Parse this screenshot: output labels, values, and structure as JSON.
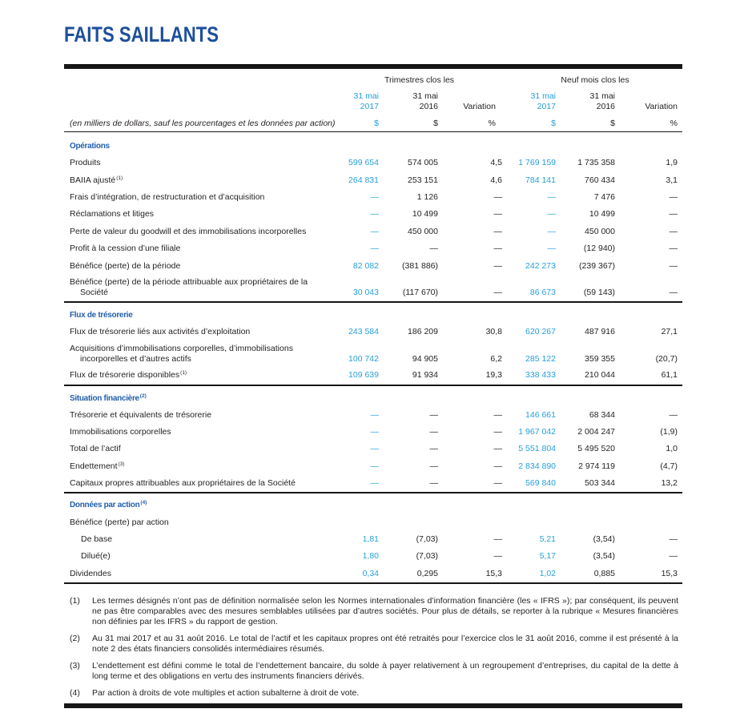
{
  "title": "FAITS SAILLANTS",
  "colors": {
    "title": "#1d4f9c",
    "section_heading": "#235fab",
    "text": "#231f20",
    "rules": "#161616"
  },
  "column_groups": [
    {
      "label": "Trimestres clos les"
    },
    {
      "label": "Neuf mois clos les"
    }
  ],
  "columns": [
    {
      "line1": "31 mai",
      "line2": "2017",
      "unit": "$",
      "color": "#26a0da"
    },
    {
      "line1": "31 mai",
      "line2": "2016",
      "unit": "$",
      "color": "#231f20"
    },
    {
      "line2": "Variation",
      "unit": "%",
      "color": "#231f20"
    },
    {
      "line1": "31 mai",
      "line2": "2017",
      "unit": "$",
      "color": "#26a0da"
    },
    {
      "line1": "31 mai",
      "line2": "2016",
      "unit": "$",
      "color": "#231f20"
    },
    {
      "line2": "Variation",
      "unit": "%",
      "color": "#231f20"
    }
  ],
  "units_note": "(en milliers de dollars, sauf les pourcentages et les données par action)",
  "sections": [
    {
      "title": "Opérations",
      "rows": [
        {
          "label": [
            "Produits"
          ],
          "values": [
            "599 654",
            "574 005",
            "4,5",
            "1 769 159",
            "1 735 358",
            "1,9"
          ]
        },
        {
          "label": [
            "BAIIA ajusté"
          ],
          "sup": "(1)",
          "values": [
            "264 831",
            "253 151",
            "4,6",
            "784 141",
            "760 434",
            "3,1"
          ]
        },
        {
          "label": [
            "Frais d’intégration, de restructuration et d’acquisition"
          ],
          "values": [
            "—",
            "1 126",
            "—",
            "—",
            "7 476",
            "—"
          ]
        },
        {
          "label": [
            "Réclamations et litiges"
          ],
          "values": [
            "—",
            "10 499",
            "—",
            "—",
            "10 499",
            "—"
          ]
        },
        {
          "label": [
            "Perte de valeur du goodwill et des immobilisations incorporelles"
          ],
          "values": [
            "—",
            "450 000",
            "—",
            "—",
            "450 000",
            "—"
          ]
        },
        {
          "label": [
            "Profit à la cession d’une filiale"
          ],
          "values": [
            "—",
            "—",
            "—",
            "—",
            "(12 940)",
            "—"
          ]
        },
        {
          "label": [
            "Bénéfice (perte) de la période"
          ],
          "values": [
            "82 082",
            "(381 886)",
            "—",
            "242 273",
            "(239 367)",
            "—"
          ]
        },
        {
          "label": [
            "Bénéfice (perte) de la période attribuable aux propriétaires de la",
            "Société"
          ],
          "values": [
            "30 043",
            "(117 670)",
            "—",
            "86 673",
            "(59 143)",
            "—"
          ]
        }
      ]
    },
    {
      "title": "Flux de trésorerie",
      "rows": [
        {
          "label": [
            "Flux de trésorerie liés aux activités d’exploitation"
          ],
          "values": [
            "243 584",
            "186 209",
            "30,8",
            "620 267",
            "487 916",
            "27,1"
          ]
        },
        {
          "label": [
            "Acquisitions d’immobilisations corporelles, d’immobilisations",
            "incorporelles et d’autres actifs"
          ],
          "values": [
            "100 742",
            "94 905",
            "6,2",
            "285 122",
            "359 355",
            "(20,7)"
          ]
        },
        {
          "label": [
            "Flux de trésorerie disponibles"
          ],
          "sup": "(1)",
          "values": [
            "109 639",
            "91 934",
            "19,3",
            "338 433",
            "210 044",
            "61,1"
          ]
        }
      ]
    },
    {
      "title": "Situation financière",
      "sup": "(2)",
      "rows": [
        {
          "label": [
            "Trésorerie et équivalents de trésorerie"
          ],
          "values": [
            "—",
            "—",
            "—",
            "146 661",
            "68 344",
            "—"
          ]
        },
        {
          "label": [
            "Immobilisations corporelles"
          ],
          "values": [
            "—",
            "—",
            "—",
            "1 967 042",
            "2 004 247",
            "(1,9)"
          ]
        },
        {
          "label": [
            "Total de l’actif"
          ],
          "values": [
            "—",
            "—",
            "—",
            "5 551 804",
            "5 495 520",
            "1,0"
          ]
        },
        {
          "label": [
            "Endettement"
          ],
          "sup": "(3)",
          "values": [
            "—",
            "—",
            "—",
            "2 834 890",
            "2 974 119",
            "(4,7)"
          ]
        },
        {
          "label": [
            "Capitaux propres attribuables aux propriétaires de la Société"
          ],
          "values": [
            "—",
            "—",
            "—",
            "569 840",
            "503 344",
            "13,2"
          ]
        }
      ]
    },
    {
      "title": "Données par action",
      "sup": "(4)",
      "rows": [
        {
          "label": [
            "Bénéfice (perte) par action"
          ],
          "values": [],
          "children": [
            {
              "label": [
                "De base"
              ],
              "values": [
                "1,81",
                "(7,03)",
                "—",
                "5,21",
                "(3,54)",
                "—"
              ]
            },
            {
              "label": [
                "Dilué(e)"
              ],
              "values": [
                "1,80",
                "(7,03)",
                "—",
                "5,17",
                "(3,54)",
                "—"
              ]
            }
          ]
        },
        {
          "label": [
            "Dividendes"
          ],
          "values": [
            "0,34",
            "0,295",
            "15,3",
            "1,02",
            "0,885",
            "15,3"
          ]
        }
      ]
    }
  ],
  "footnotes": [
    {
      "marker": "(1)",
      "text": "Les termes désignés n’ont pas de définition normalisée selon les Normes internationales d’information financière (les « IFRS »); par conséquent, ils peuvent ne pas être comparables avec des mesures semblables utilisées par d’autres sociétés. Pour plus de détails, se reporter à la rubrique « Mesures financières non définies par les IFRS » du rapport de gestion."
    },
    {
      "marker": "(2)",
      "text": "Au 31 mai 2017 et au 31 août 2016. Le total de l’actif et les capitaux propres ont été retraités pour l’exercice clos le 31 août 2016, comme il est présenté à la note 2 des états financiers consolidés intermédiaires résumés."
    },
    {
      "marker": "(3)",
      "text": "L’endettement est défini comme le total de l’endettement bancaire, du solde à payer relativement à un regroupement d’entreprises, du capital de la dette à long terme et des obligations en vertu des instruments financiers dérivés."
    },
    {
      "marker": "(4)",
      "text": "Par action à droits de vote multiples et action subalterne à droit de vote."
    }
  ]
}
